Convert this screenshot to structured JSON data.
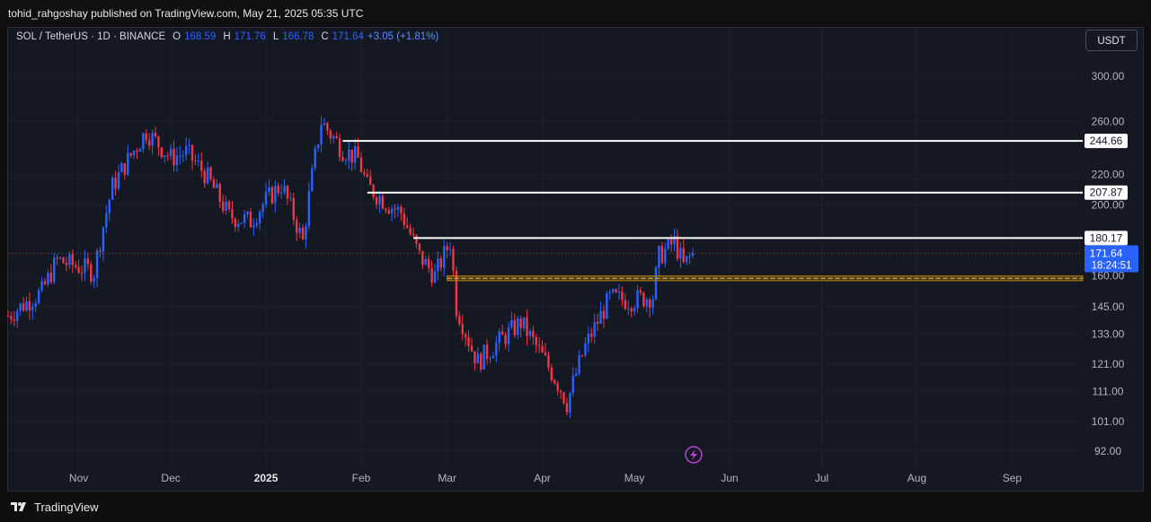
{
  "header": {
    "published_text": "tohid_rahgoshay published on TradingView.com, May 21, 2025 05:35 UTC"
  },
  "legend": {
    "symbol": "SOL / TetherUS · 1D · BINANCE",
    "o_label": "O",
    "o_value": "168.59",
    "h_label": "H",
    "h_value": "171.76",
    "l_label": "L",
    "l_value": "166.78",
    "c_label": "C",
    "c_value": "171.64",
    "change": "+3.05 (+1.81%)"
  },
  "currency_button": "USDT",
  "footer": {
    "brand": "TradingView"
  },
  "colors": {
    "up": "#2962ff",
    "down": "#f23645",
    "level_line": "#ffffff",
    "zone": "#b8860b",
    "background": "#141823"
  },
  "chart_data": {
    "type": "candlestick",
    "title": "SOL / TetherUS · 1D · BINANCE",
    "y_scale": "log",
    "ylim": [
      88,
      330
    ],
    "y_ticks": [
      "300.00",
      "260.00",
      "220.00",
      "200.00",
      "160.00",
      "145.00",
      "133.00",
      "121.00",
      "111.00",
      "101.00",
      "92.00"
    ],
    "x_ticks": [
      "Nov",
      "Dec",
      "2025",
      "Feb",
      "Mar",
      "Apr",
      "May",
      "Jun",
      "Jul",
      "Aug",
      "Sep"
    ],
    "x_tick_dates": [
      "2024-11-01",
      "2024-12-01",
      "2025-01-01",
      "2025-02-01",
      "2025-03-01",
      "2025-04-01",
      "2025-05-01",
      "2025-06-01",
      "2025-07-01",
      "2025-08-01",
      "2025-09-01"
    ],
    "xlim": [
      "2024-10-09",
      "2025-09-24"
    ],
    "price_path_dates": [
      "2024-10-09",
      "2024-10-20",
      "2024-10-25",
      "2024-11-06",
      "2024-11-12",
      "2024-11-23",
      "2024-12-01",
      "2024-12-06",
      "2024-12-12",
      "2024-12-20",
      "2024-12-27",
      "2025-01-01",
      "2025-01-06",
      "2025-01-13",
      "2025-01-19",
      "2025-01-22",
      "2025-01-26",
      "2025-01-31",
      "2025-02-03",
      "2025-02-10",
      "2025-02-14",
      "2025-02-20",
      "2025-02-25",
      "2025-03-02",
      "2025-03-04",
      "2025-03-09",
      "2025-03-11",
      "2025-03-17",
      "2025-03-25",
      "2025-04-01",
      "2025-04-07",
      "2025-04-09",
      "2025-04-15",
      "2025-04-23",
      "2025-04-30",
      "2025-05-07",
      "2025-05-09",
      "2025-05-14",
      "2025-05-17",
      "2025-05-20"
    ],
    "price_path_closes": [
      141,
      152,
      168,
      162,
      212,
      252,
      232,
      236,
      221,
      193,
      190,
      203,
      213,
      178,
      260,
      250,
      238,
      231,
      212,
      200,
      195,
      170,
      160,
      178,
      145,
      127,
      122,
      129,
      138,
      124,
      112,
      107,
      128,
      149,
      148,
      150,
      170,
      178,
      165,
      171.64
    ],
    "last_price": "171.64",
    "countdown": "18:24:51",
    "levels": [
      {
        "value": "244.66",
        "from": "2025-01-26"
      },
      {
        "value": "207.87",
        "from": "2025-02-03"
      },
      {
        "value": "180.17",
        "from": "2025-02-18"
      }
    ],
    "zone": {
      "low": 157.5,
      "high": 159.8,
      "from": "2025-03-01"
    }
  }
}
